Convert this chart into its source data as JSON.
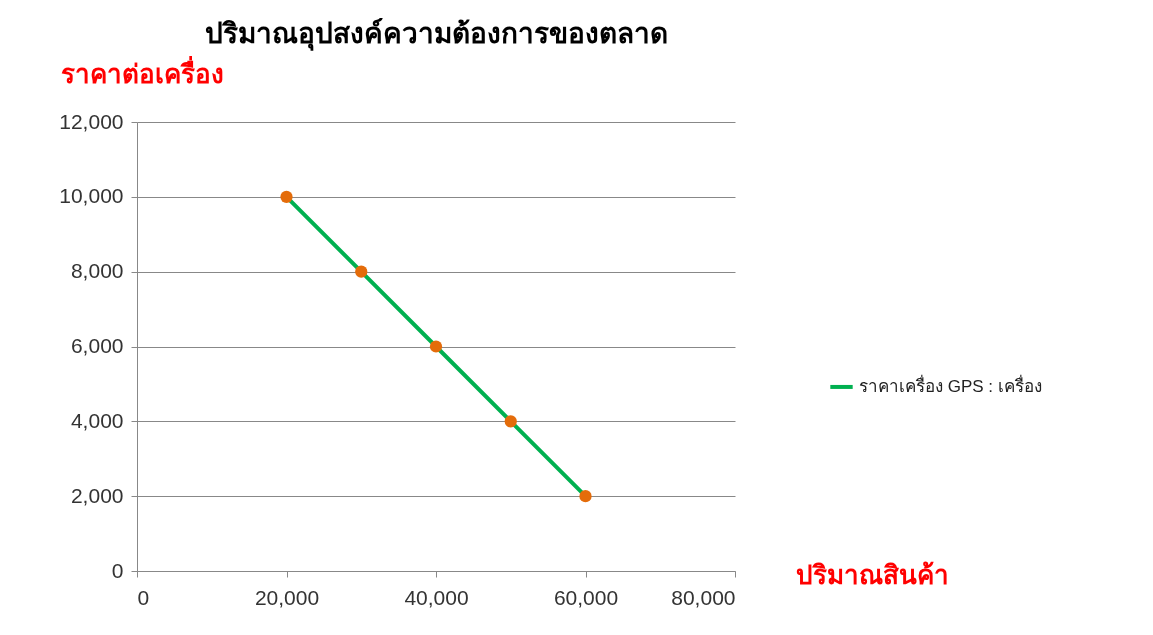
{
  "chart_data": {
    "type": "line",
    "title": "ปริมาณอุปสงค์ความต้องการของตลาด",
    "xlabel": "ปริมาณสินค้า",
    "ylabel": "ราคาต่อเครื่อง",
    "x": [
      20000,
      30000,
      40000,
      50000,
      60000
    ],
    "series": [
      {
        "name": "ราคาเครื่อง GPS : เครื่อง",
        "color": "#00b050",
        "colors": [
          "#e46c0a",
          "#e46c0a",
          "#e46c0a",
          "#e46c0a",
          "#e46c0a"
        ],
        "values": [
          10000,
          8000,
          6000,
          4000,
          2000
        ]
      }
    ],
    "xlim": [
      0,
      80000
    ],
    "xticks": [
      0,
      {
        "value": 20000,
        "label": "20,000"
      },
      {
        "value": 40000,
        "label": "40,000"
      },
      {
        "value": 60000,
        "label": "60,000"
      },
      {
        "value": 80000,
        "label": "80,000"
      }
    ],
    "ylim": [
      0,
      12000
    ],
    "yticks": [
      0,
      {
        "value": 2000,
        "label": "2,000"
      },
      {
        "value": 4000,
        "label": "4,000"
      },
      {
        "value": 6000,
        "label": "6,000"
      },
      {
        "value": 8000,
        "label": "8,000"
      },
      {
        "value": 10000,
        "label": "10,000"
      },
      {
        "value": 12000,
        "label": "12,000"
      }
    ],
    "grid": "y",
    "legend": "right",
    "marker": "circle",
    "line_style": "solid"
  }
}
